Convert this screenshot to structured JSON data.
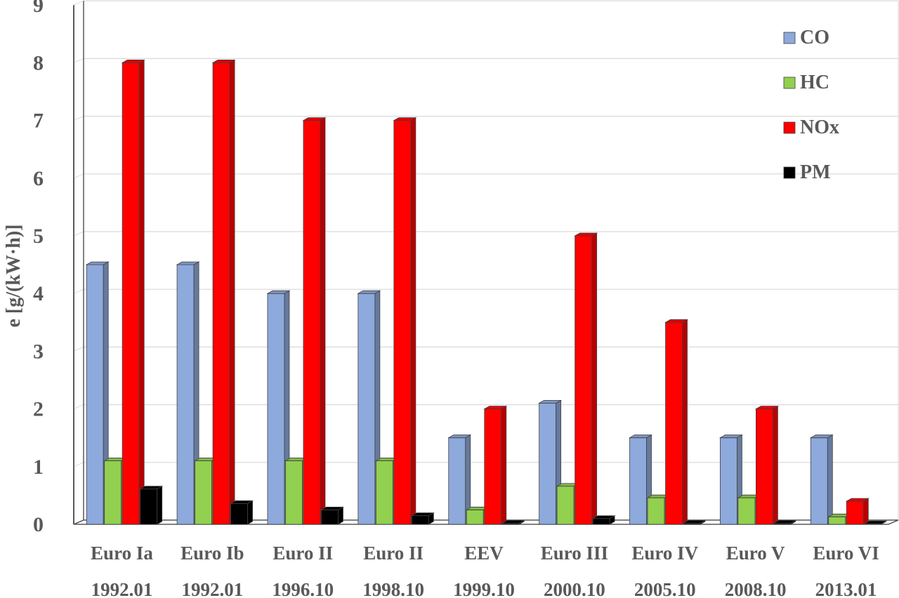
{
  "chart_data": {
    "type": "bar",
    "ylabel": "e [g/(kW·h)]",
    "xlabel": "",
    "ylim": [
      0,
      9
    ],
    "yticks": [
      "0",
      "1",
      "2",
      "3",
      "4",
      "5",
      "6",
      "7",
      "8",
      "9"
    ],
    "grid": true,
    "legend_position": "top-right",
    "categories": [
      {
        "name": "Euro Ia",
        "date": "1992.01"
      },
      {
        "name": "Euro Ib",
        "date": "1992.01"
      },
      {
        "name": "Euro II",
        "date": "1996.10"
      },
      {
        "name": "Euro II",
        "date": "1998.10"
      },
      {
        "name": "EEV",
        "date": "1999.10"
      },
      {
        "name": "Euro III",
        "date": "2000.10"
      },
      {
        "name": "Euro IV",
        "date": "2005.10"
      },
      {
        "name": "Euro V",
        "date": "2008.10"
      },
      {
        "name": "Euro VI",
        "date": "2013.01"
      }
    ],
    "series": [
      {
        "name": "CO",
        "color": "#8EA9DB",
        "values": [
          4.5,
          4.5,
          4.0,
          4.0,
          1.5,
          2.1,
          1.5,
          1.5,
          1.5
        ]
      },
      {
        "name": "HC",
        "color": "#92D050",
        "values": [
          1.1,
          1.1,
          1.1,
          1.1,
          0.25,
          0.66,
          0.46,
          0.46,
          0.13
        ]
      },
      {
        "name": "NOx",
        "color": "#FF0000",
        "values": [
          8.0,
          8.0,
          7.0,
          7.0,
          2.0,
          5.0,
          3.5,
          2.0,
          0.4
        ]
      },
      {
        "name": "PM",
        "color": "#000000",
        "values": [
          0.612,
          0.36,
          0.25,
          0.15,
          0.02,
          0.1,
          0.02,
          0.02,
          0.01
        ]
      }
    ]
  }
}
